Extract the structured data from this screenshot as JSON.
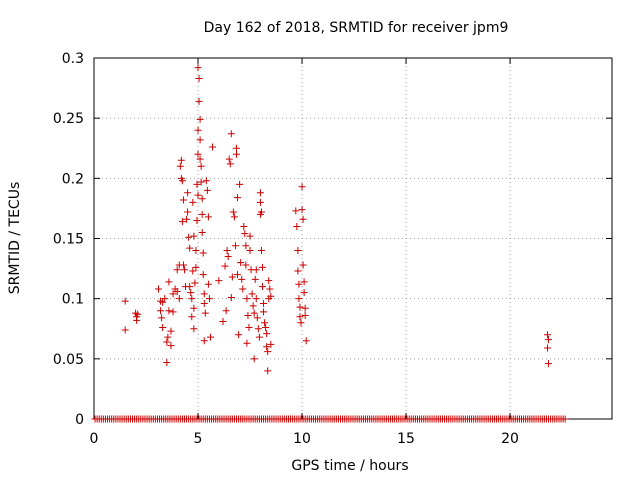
{
  "chart_data": {
    "type": "scatter",
    "title": "Day 162 of 2018, SRMTID for receiver jpm9",
    "xlabel": "GPS time / hours",
    "ylabel": "SRMTID / TECUs",
    "xlim": [
      0,
      24.9
    ],
    "ylim": [
      0,
      0.3
    ],
    "xticks": [
      0,
      5,
      10,
      15,
      20
    ],
    "yticks": [
      0,
      0.05,
      0.1,
      0.15,
      0.2,
      0.25,
      0.3
    ],
    "xtick_labels": [
      "0",
      "5",
      "10",
      "15",
      "20"
    ],
    "ytick_labels": [
      "0",
      "0.05",
      "0.1",
      "0.15",
      "0.2",
      "0.25",
      "0.3"
    ],
    "grid": true,
    "marker": "+",
    "color": "#cc0000",
    "zero_baseline": {
      "x_start": 0.05,
      "x_end": 22.7,
      "step": 0.1,
      "y": 0
    },
    "points": [
      [
        1.5,
        0.098
      ],
      [
        1.5,
        0.074
      ],
      [
        2.0,
        0.088
      ],
      [
        2.05,
        0.085
      ],
      [
        2.05,
        0.082
      ],
      [
        2.1,
        0.087
      ],
      [
        3.1,
        0.108
      ],
      [
        3.2,
        0.098
      ],
      [
        3.2,
        0.09
      ],
      [
        3.25,
        0.084
      ],
      [
        3.3,
        0.076
      ],
      [
        3.3,
        0.097
      ],
      [
        3.4,
        0.1
      ],
      [
        3.5,
        0.047
      ],
      [
        3.5,
        0.064
      ],
      [
        3.55,
        0.068
      ],
      [
        3.6,
        0.09
      ],
      [
        3.6,
        0.114
      ],
      [
        3.7,
        0.073
      ],
      [
        3.7,
        0.061
      ],
      [
        3.8,
        0.089
      ],
      [
        3.8,
        0.104
      ],
      [
        3.9,
        0.108
      ],
      [
        4.0,
        0.124
      ],
      [
        4.0,
        0.106
      ],
      [
        4.1,
        0.128
      ],
      [
        4.1,
        0.1
      ],
      [
        4.15,
        0.21
      ],
      [
        4.2,
        0.215
      ],
      [
        4.2,
        0.2
      ],
      [
        4.25,
        0.198
      ],
      [
        4.25,
        0.164
      ],
      [
        4.3,
        0.182
      ],
      [
        4.3,
        0.128
      ],
      [
        4.35,
        0.124
      ],
      [
        4.4,
        0.11
      ],
      [
        4.45,
        0.166
      ],
      [
        4.5,
        0.188
      ],
      [
        4.5,
        0.172
      ],
      [
        4.55,
        0.151
      ],
      [
        4.6,
        0.142
      ],
      [
        4.6,
        0.11
      ],
      [
        4.65,
        0.105
      ],
      [
        4.7,
        0.1
      ],
      [
        4.7,
        0.085
      ],
      [
        4.75,
        0.18
      ],
      [
        4.75,
        0.123
      ],
      [
        4.8,
        0.152
      ],
      [
        4.8,
        0.092
      ],
      [
        4.8,
        0.075
      ],
      [
        4.85,
        0.113
      ],
      [
        4.9,
        0.14
      ],
      [
        4.9,
        0.126
      ],
      [
        4.95,
        0.165
      ],
      [
        4.95,
        0.195
      ],
      [
        5.0,
        0.24
      ],
      [
        5.0,
        0.22
      ],
      [
        5.0,
        0.186
      ],
      [
        5.0,
        0.292
      ],
      [
        5.05,
        0.283
      ],
      [
        5.05,
        0.264
      ],
      [
        5.1,
        0.249
      ],
      [
        5.1,
        0.232
      ],
      [
        5.1,
        0.216
      ],
      [
        5.15,
        0.21
      ],
      [
        5.15,
        0.197
      ],
      [
        5.2,
        0.183
      ],
      [
        5.2,
        0.17
      ],
      [
        5.2,
        0.155
      ],
      [
        5.25,
        0.138
      ],
      [
        5.25,
        0.12
      ],
      [
        5.3,
        0.104
      ],
      [
        5.3,
        0.096
      ],
      [
        5.3,
        0.065
      ],
      [
        5.35,
        0.088
      ],
      [
        5.4,
        0.198
      ],
      [
        5.45,
        0.19
      ],
      [
        5.5,
        0.168
      ],
      [
        5.5,
        0.112
      ],
      [
        5.55,
        0.1
      ],
      [
        5.6,
        0.068
      ],
      [
        5.7,
        0.226
      ],
      [
        6.0,
        0.115
      ],
      [
        6.2,
        0.081
      ],
      [
        6.3,
        0.127
      ],
      [
        6.35,
        0.09
      ],
      [
        6.4,
        0.14
      ],
      [
        6.45,
        0.135
      ],
      [
        6.5,
        0.216
      ],
      [
        6.55,
        0.212
      ],
      [
        6.6,
        0.237
      ],
      [
        6.6,
        0.101
      ],
      [
        6.65,
        0.118
      ],
      [
        6.7,
        0.172
      ],
      [
        6.75,
        0.168
      ],
      [
        6.8,
        0.144
      ],
      [
        6.85,
        0.22
      ],
      [
        6.85,
        0.225
      ],
      [
        6.9,
        0.184
      ],
      [
        6.9,
        0.12
      ],
      [
        6.95,
        0.07
      ],
      [
        7.0,
        0.195
      ],
      [
        7.05,
        0.13
      ],
      [
        7.1,
        0.116
      ],
      [
        7.15,
        0.108
      ],
      [
        7.2,
        0.16
      ],
      [
        7.25,
        0.154
      ],
      [
        7.3,
        0.144
      ],
      [
        7.3,
        0.128
      ],
      [
        7.35,
        0.1
      ],
      [
        7.35,
        0.063
      ],
      [
        7.4,
        0.086
      ],
      [
        7.45,
        0.076
      ],
      [
        7.5,
        0.152
      ],
      [
        7.5,
        0.14
      ],
      [
        7.55,
        0.124
      ],
      [
        7.6,
        0.104
      ],
      [
        7.65,
        0.094
      ],
      [
        7.7,
        0.088
      ],
      [
        7.7,
        0.05
      ],
      [
        7.75,
        0.116
      ],
      [
        7.8,
        0.124
      ],
      [
        7.8,
        0.1
      ],
      [
        7.85,
        0.084
      ],
      [
        7.9,
        0.075
      ],
      [
        7.95,
        0.068
      ],
      [
        8.0,
        0.188
      ],
      [
        8.0,
        0.18
      ],
      [
        8.0,
        0.17
      ],
      [
        8.05,
        0.172
      ],
      [
        8.05,
        0.14
      ],
      [
        8.1,
        0.126
      ],
      [
        8.1,
        0.11
      ],
      [
        8.15,
        0.096
      ],
      [
        8.15,
        0.089
      ],
      [
        8.2,
        0.08
      ],
      [
        8.25,
        0.076
      ],
      [
        8.3,
        0.071
      ],
      [
        8.3,
        0.06
      ],
      [
        8.35,
        0.056
      ],
      [
        8.35,
        0.04
      ],
      [
        8.4,
        0.1
      ],
      [
        8.4,
        0.115
      ],
      [
        8.45,
        0.108
      ],
      [
        8.5,
        0.102
      ],
      [
        8.5,
        0.062
      ],
      [
        9.7,
        0.173
      ],
      [
        9.75,
        0.16
      ],
      [
        9.8,
        0.14
      ],
      [
        9.8,
        0.123
      ],
      [
        9.85,
        0.112
      ],
      [
        9.85,
        0.1
      ],
      [
        9.9,
        0.093
      ],
      [
        9.9,
        0.085
      ],
      [
        9.95,
        0.08
      ],
      [
        10.0,
        0.193
      ],
      [
        10.0,
        0.174
      ],
      [
        10.05,
        0.166
      ],
      [
        10.05,
        0.128
      ],
      [
        10.1,
        0.114
      ],
      [
        10.1,
        0.105
      ],
      [
        10.15,
        0.092
      ],
      [
        10.15,
        0.086
      ],
      [
        10.2,
        0.065
      ],
      [
        21.8,
        0.07
      ],
      [
        21.8,
        0.059
      ],
      [
        21.85,
        0.066
      ],
      [
        21.85,
        0.046
      ]
    ]
  }
}
